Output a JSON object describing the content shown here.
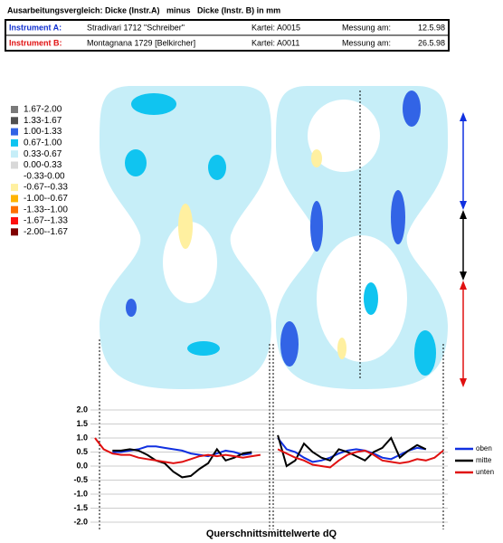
{
  "header": {
    "title": "Ausarbeitungsvergleich: Dicke (Instr.A)   minus   Dicke (Instr. B) in mm",
    "rows": [
      {
        "label": "Instrument A:",
        "color": "#1030d0",
        "name": "Stradivari 1712 \"Schreiber\"",
        "kartei": "Kartei: A0015",
        "messung": "Messung am:",
        "date": "12.5.98"
      },
      {
        "label": "Instrument B:",
        "color": "#e01010",
        "name": "Montagnana 1729 [Belkircher]",
        "kartei": "Kartei: A0011",
        "messung": "Messung am:",
        "date": "26.5.98"
      }
    ]
  },
  "legend": {
    "items": [
      {
        "label": "1.67-2.00",
        "color": "#7a7a7a"
      },
      {
        "label": "1.33-1.67",
        "color": "#505050"
      },
      {
        "label": "1.00-1.33",
        "color": "#3264e6"
      },
      {
        "label": "0.67-1.00",
        "color": "#10c4f0"
      },
      {
        "label": "0.33-0.67",
        "color": "#c6eef8"
      },
      {
        "label": "0.00-0.33",
        "color": "#d8d8d8"
      },
      {
        "label": "-0.33-0.00",
        "color": "#ffffff"
      },
      {
        "label": "-0.67--0.33",
        "color": "#fff0a0"
      },
      {
        "label": "-1.00--0.67",
        "color": "#ffb400"
      },
      {
        "label": "-1.33--1.00",
        "color": "#ff7000"
      },
      {
        "label": "-1.67--1.33",
        "color": "#ff1010"
      },
      {
        "label": "-2.00--1.67",
        "color": "#800000"
      }
    ]
  },
  "chart_data": {
    "type": "line",
    "xlabel": "Querschnittsmittelwerte dQ",
    "ylim": [
      -2,
      2
    ],
    "yticks": [
      {
        "value": 2,
        "label": "2.0"
      },
      {
        "value": 1.5,
        "label": "1.5"
      },
      {
        "value": 1,
        "label": "1.0"
      },
      {
        "value": 0.5,
        "label": "0.5"
      },
      {
        "value": 0,
        "label": "0.0"
      },
      {
        "value": -0.5,
        "label": "-0.5"
      },
      {
        "value": -1,
        "label": "-1.0"
      },
      {
        "value": -1.5,
        "label": "-1.5"
      },
      {
        "value": -2,
        "label": "-2.0"
      }
    ],
    "grid": true,
    "series": [
      {
        "name": "oben",
        "color": "#1030e0",
        "values": [
          null,
          null,
          0.5,
          0.5,
          0.55,
          0.6,
          0.7,
          0.7,
          0.65,
          0.6,
          0.55,
          0.45,
          0.4,
          0.35,
          0.45,
          0.55,
          0.5,
          0.4,
          0.45,
          null,
          null,
          1.0,
          0.6,
          0.5,
          0.3,
          0.15,
          0.2,
          0.3,
          0.45,
          0.55,
          0.6,
          0.55,
          0.45,
          0.3,
          0.25,
          0.4,
          0.55,
          0.65,
          0.6,
          null,
          null
        ]
      },
      {
        "name": "mitte",
        "color": "#000000",
        "values": [
          null,
          null,
          0.55,
          0.55,
          0.6,
          0.55,
          0.4,
          0.2,
          0.1,
          -0.2,
          -0.4,
          -0.35,
          -0.1,
          0.1,
          0.6,
          0.2,
          0.3,
          0.45,
          0.5,
          null,
          null,
          1.1,
          0.0,
          0.2,
          0.8,
          0.5,
          0.3,
          0.2,
          0.6,
          0.5,
          0.35,
          0.2,
          0.5,
          0.65,
          1.0,
          0.3,
          0.55,
          0.75,
          0.6,
          null,
          null
        ]
      },
      {
        "name": "unten",
        "color": "#e01010",
        "values": [
          1.0,
          0.6,
          0.45,
          0.4,
          0.4,
          0.3,
          0.25,
          0.2,
          0.15,
          0.1,
          0.15,
          0.25,
          0.35,
          0.4,
          0.35,
          0.4,
          0.35,
          0.3,
          0.35,
          0.4,
          null,
          0.6,
          0.45,
          0.3,
          0.2,
          0.05,
          0.0,
          -0.05,
          0.2,
          0.4,
          0.5,
          0.55,
          0.4,
          0.2,
          0.15,
          0.1,
          0.15,
          0.25,
          0.2,
          0.3,
          0.55
        ]
      }
    ]
  }
}
